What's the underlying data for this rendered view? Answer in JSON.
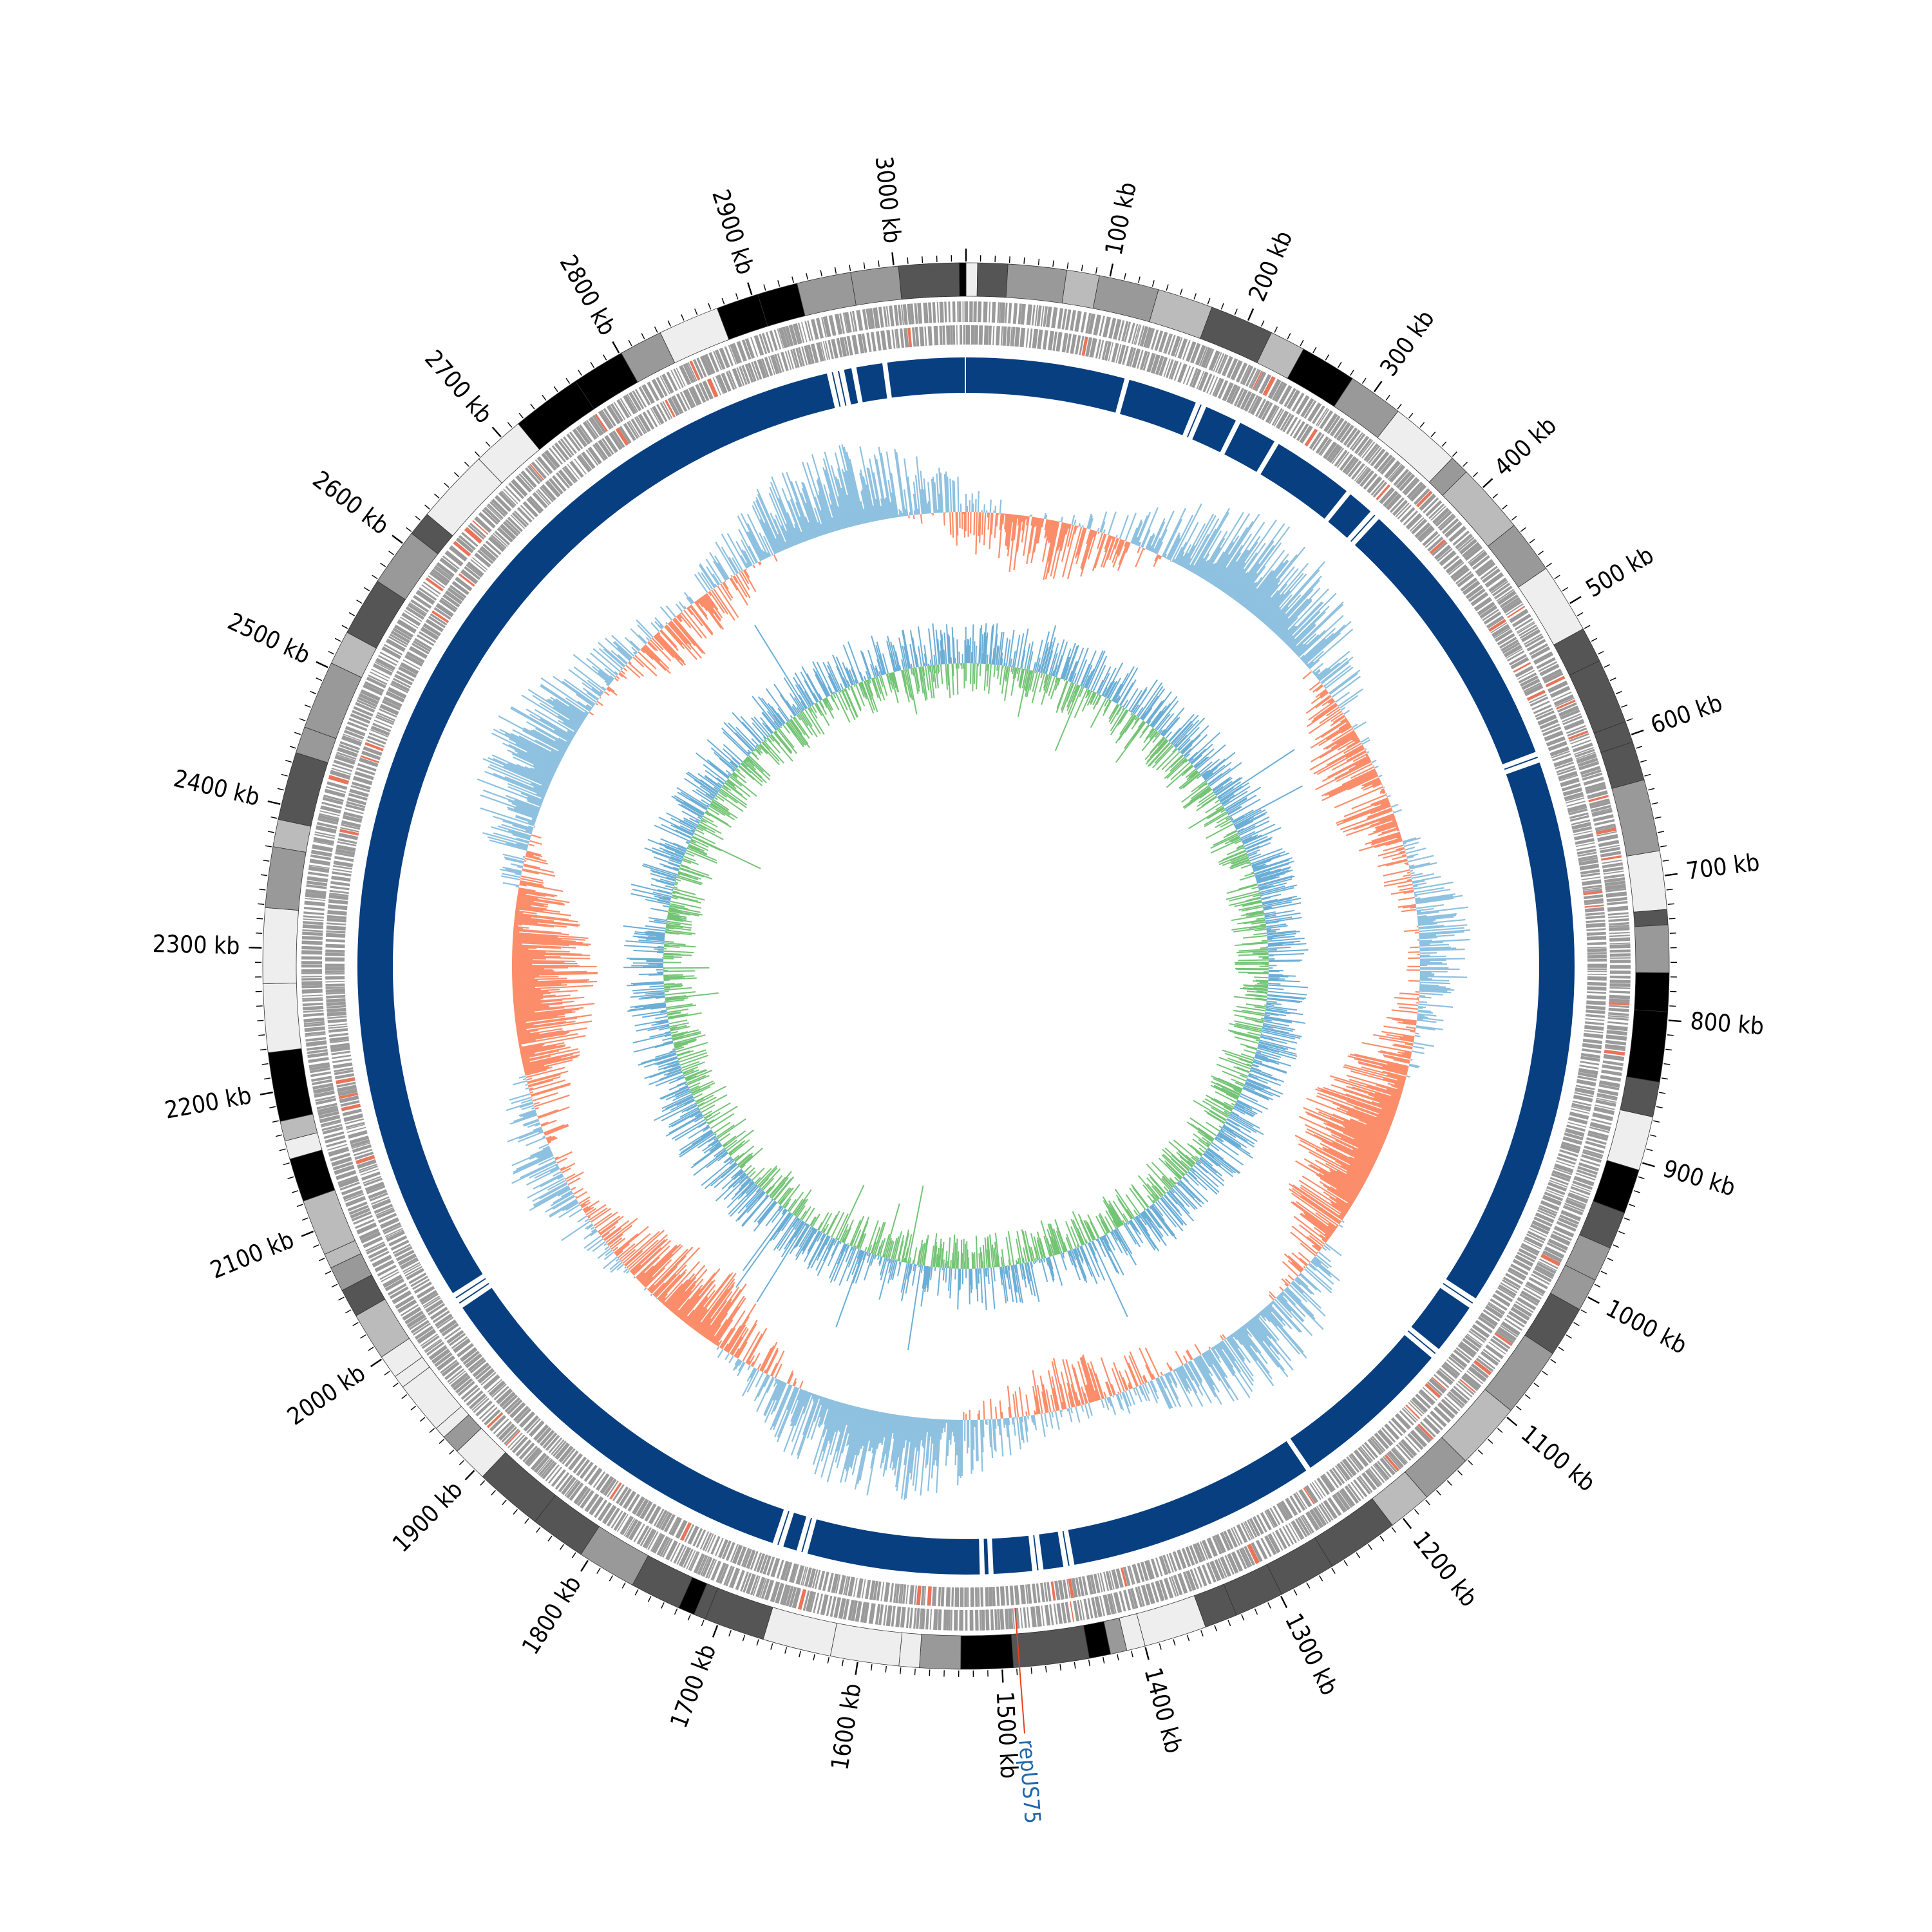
{
  "genome": {
    "length_kb": 3050,
    "tick_labels": [
      "100 kb",
      "200 kb",
      "300 kb",
      "400 kb",
      "500 kb",
      "600 kb",
      "700 kb",
      "800 kb",
      "900 kb",
      "1000 kb",
      "1100 kb",
      "1200 kb",
      "1300 kb",
      "1400 kb",
      "1500 kb",
      "1600 kb",
      "1700 kb",
      "1800 kb",
      "1900 kb",
      "2000 kb",
      "2100 kb",
      "2200 kb",
      "2300 kb",
      "2400 kb",
      "2500 kb",
      "2600 kb",
      "2700 kb",
      "2800 kb",
      "2900 kb",
      "3000 kb"
    ],
    "tick_positions_kb": [
      100,
      200,
      300,
      400,
      500,
      600,
      700,
      800,
      900,
      1000,
      1100,
      1200,
      1300,
      1400,
      1500,
      1600,
      1700,
      1800,
      1900,
      2000,
      2100,
      2200,
      2300,
      2400,
      2500,
      2600,
      2700,
      2800,
      2900,
      3000
    ]
  },
  "annotation": {
    "label": "repUS75",
    "position_kb": 1488,
    "line_color": "#e8401c",
    "text_color": "#2166ac"
  },
  "colors": {
    "block_shades": [
      "#000000",
      "#555555",
      "#999999",
      "#bbbbbb",
      "#eeeeee"
    ],
    "genes": "#9a9a9a",
    "genes_accent": "#e8745a",
    "contigs": "#083f80",
    "gc_pos": "#fc8d6a",
    "gc_neg": "#8ec1e0",
    "skew_pos": "#74c476",
    "skew_neg": "#6baed6"
  },
  "contig_gaps_kb": [
    130,
    190,
    195,
    225,
    260,
    330,
    355,
    360,
    590,
    595,
    1045,
    1050,
    1095,
    1100,
    1235,
    1440,
    1445,
    1465,
    1470,
    1505,
    1512,
    1655,
    1660,
    1675,
    1680,
    2000,
    2005,
    2010,
    2940,
    2945,
    2950,
    2960,
    2985
  ]
}
